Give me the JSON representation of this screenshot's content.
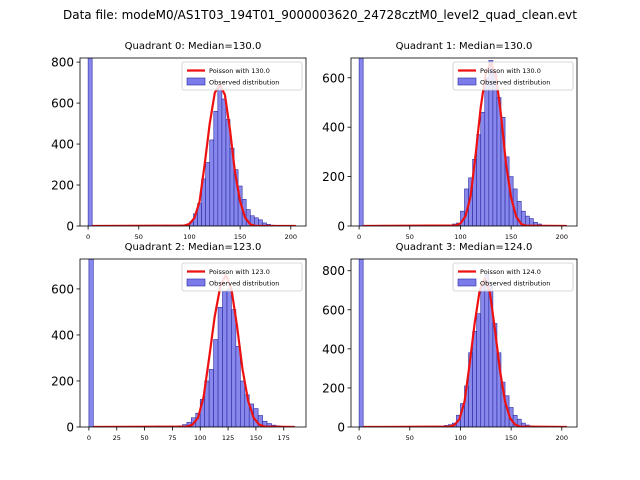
{
  "figure": {
    "suptitle": "Data file: modeM0/AS1T03_194T01_9000003620_24728cztM0_level2_quad_clean.evt"
  },
  "colors": {
    "bar_fill": "#7b7bea",
    "bar_edge": "#2a2aa0",
    "poisson_line": "#ee1111",
    "axis": "#000000",
    "legend_border": "#cccccc"
  },
  "chart_data": [
    {
      "type": "bar",
      "title": "Quadrant 0: Median=130.0",
      "median": 130.0,
      "xlim": [
        -8,
        215
      ],
      "ylim": [
        0,
        820
      ],
      "xticks": [
        0,
        50,
        100,
        150,
        200
      ],
      "yticks": [
        0,
        200,
        400,
        600,
        800
      ],
      "legend": {
        "placement": "top-right",
        "line_label": "Poisson with 130.0",
        "bar_label": "Observed distribution"
      },
      "bins": [
        {
          "x": 0,
          "w": 4,
          "y": 820
        },
        {
          "x": 76,
          "w": 4,
          "y": 4
        },
        {
          "x": 88,
          "w": 4,
          "y": 4
        },
        {
          "x": 92,
          "w": 4,
          "y": 5
        },
        {
          "x": 96,
          "w": 4,
          "y": 8
        },
        {
          "x": 100,
          "w": 4,
          "y": 20
        },
        {
          "x": 104,
          "w": 4,
          "y": 60
        },
        {
          "x": 108,
          "w": 4,
          "y": 110
        },
        {
          "x": 112,
          "w": 4,
          "y": 230
        },
        {
          "x": 116,
          "w": 4,
          "y": 310
        },
        {
          "x": 120,
          "w": 4,
          "y": 420
        },
        {
          "x": 124,
          "w": 4,
          "y": 560
        },
        {
          "x": 128,
          "w": 4,
          "y": 690
        },
        {
          "x": 132,
          "w": 4,
          "y": 620
        },
        {
          "x": 136,
          "w": 4,
          "y": 520
        },
        {
          "x": 140,
          "w": 4,
          "y": 380
        },
        {
          "x": 144,
          "w": 4,
          "y": 275
        },
        {
          "x": 148,
          "w": 4,
          "y": 195
        },
        {
          "x": 152,
          "w": 4,
          "y": 130
        },
        {
          "x": 156,
          "w": 4,
          "y": 80
        },
        {
          "x": 160,
          "w": 4,
          "y": 50
        },
        {
          "x": 164,
          "w": 4,
          "y": 40
        },
        {
          "x": 168,
          "w": 4,
          "y": 30
        },
        {
          "x": 172,
          "w": 4,
          "y": 15
        },
        {
          "x": 176,
          "w": 4,
          "y": 8
        },
        {
          "x": 180,
          "w": 4,
          "y": 4
        }
      ],
      "poisson": [
        [
          4,
          0
        ],
        [
          95,
          2
        ],
        [
          100,
          10
        ],
        [
          105,
          40
        ],
        [
          110,
          120
        ],
        [
          115,
          300
        ],
        [
          120,
          500
        ],
        [
          125,
          650
        ],
        [
          130,
          690
        ],
        [
          135,
          640
        ],
        [
          140,
          470
        ],
        [
          145,
          260
        ],
        [
          150,
          120
        ],
        [
          155,
          40
        ],
        [
          160,
          8
        ],
        [
          165,
          1
        ],
        [
          205,
          0
        ]
      ]
    },
    {
      "type": "bar",
      "title": "Quadrant 1: Median=130.0",
      "median": 130.0,
      "xlim": [
        -8,
        215
      ],
      "ylim": [
        0,
        680
      ],
      "xticks": [
        0,
        50,
        100,
        150,
        200
      ],
      "yticks": [
        0,
        200,
        400,
        600
      ],
      "legend": {
        "placement": "top-right",
        "line_label": "Poisson with 130.0",
        "bar_label": "Observed distribution"
      },
      "bins": [
        {
          "x": 0,
          "w": 4,
          "y": 680
        },
        {
          "x": 80,
          "w": 4,
          "y": 4
        },
        {
          "x": 92,
          "w": 4,
          "y": 8
        },
        {
          "x": 96,
          "w": 4,
          "y": 12
        },
        {
          "x": 100,
          "w": 4,
          "y": 60
        },
        {
          "x": 104,
          "w": 4,
          "y": 150
        },
        {
          "x": 108,
          "w": 4,
          "y": 195
        },
        {
          "x": 112,
          "w": 4,
          "y": 270
        },
        {
          "x": 116,
          "w": 4,
          "y": 370
        },
        {
          "x": 120,
          "w": 4,
          "y": 460
        },
        {
          "x": 124,
          "w": 4,
          "y": 600
        },
        {
          "x": 128,
          "w": 4,
          "y": 670
        },
        {
          "x": 132,
          "w": 4,
          "y": 620
        },
        {
          "x": 136,
          "w": 4,
          "y": 520
        },
        {
          "x": 140,
          "w": 4,
          "y": 440
        },
        {
          "x": 144,
          "w": 4,
          "y": 280
        },
        {
          "x": 148,
          "w": 4,
          "y": 200
        },
        {
          "x": 152,
          "w": 4,
          "y": 150
        },
        {
          "x": 156,
          "w": 4,
          "y": 100
        },
        {
          "x": 160,
          "w": 4,
          "y": 60
        },
        {
          "x": 164,
          "w": 4,
          "y": 40
        },
        {
          "x": 168,
          "w": 4,
          "y": 30
        },
        {
          "x": 172,
          "w": 4,
          "y": 15
        },
        {
          "x": 176,
          "w": 4,
          "y": 8
        }
      ],
      "poisson": [
        [
          4,
          0
        ],
        [
          95,
          2
        ],
        [
          100,
          10
        ],
        [
          105,
          40
        ],
        [
          110,
          120
        ],
        [
          115,
          290
        ],
        [
          120,
          480
        ],
        [
          125,
          620
        ],
        [
          130,
          660
        ],
        [
          135,
          610
        ],
        [
          140,
          450
        ],
        [
          145,
          250
        ],
        [
          150,
          115
        ],
        [
          155,
          38
        ],
        [
          160,
          8
        ],
        [
          165,
          1
        ],
        [
          205,
          0
        ]
      ]
    },
    {
      "type": "bar",
      "title": "Quadrant 2: Median=123.0",
      "median": 123.0,
      "xlim": [
        -8,
        195
      ],
      "ylim": [
        0,
        730
      ],
      "xticks": [
        0,
        25,
        50,
        75,
        100,
        125,
        150,
        175
      ],
      "yticks": [
        0,
        200,
        400,
        600
      ],
      "legend": {
        "placement": "top-right",
        "line_label": "Poisson with 123.0",
        "bar_label": "Observed distribution"
      },
      "bins": [
        {
          "x": 0,
          "w": 4,
          "y": 730
        },
        {
          "x": 60,
          "w": 4,
          "y": 4
        },
        {
          "x": 72,
          "w": 4,
          "y": 4
        },
        {
          "x": 80,
          "w": 4,
          "y": 5
        },
        {
          "x": 84,
          "w": 4,
          "y": 10
        },
        {
          "x": 88,
          "w": 4,
          "y": 20
        },
        {
          "x": 92,
          "w": 4,
          "y": 40
        },
        {
          "x": 96,
          "w": 4,
          "y": 60
        },
        {
          "x": 100,
          "w": 4,
          "y": 120
        },
        {
          "x": 104,
          "w": 4,
          "y": 200
        },
        {
          "x": 108,
          "w": 4,
          "y": 250
        },
        {
          "x": 112,
          "w": 4,
          "y": 380
        },
        {
          "x": 116,
          "w": 4,
          "y": 520
        },
        {
          "x": 120,
          "w": 4,
          "y": 590
        },
        {
          "x": 124,
          "w": 4,
          "y": 600
        },
        {
          "x": 128,
          "w": 4,
          "y": 510
        },
        {
          "x": 132,
          "w": 4,
          "y": 350
        },
        {
          "x": 136,
          "w": 4,
          "y": 200
        },
        {
          "x": 140,
          "w": 4,
          "y": 140
        },
        {
          "x": 144,
          "w": 4,
          "y": 100
        },
        {
          "x": 148,
          "w": 4,
          "y": 80
        },
        {
          "x": 152,
          "w": 4,
          "y": 50
        },
        {
          "x": 156,
          "w": 4,
          "y": 25
        },
        {
          "x": 160,
          "w": 4,
          "y": 15
        },
        {
          "x": 164,
          "w": 4,
          "y": 8
        },
        {
          "x": 168,
          "w": 4,
          "y": 5
        }
      ],
      "poisson": [
        [
          4,
          0
        ],
        [
          88,
          2
        ],
        [
          93,
          10
        ],
        [
          98,
          40
        ],
        [
          103,
          130
        ],
        [
          108,
          300
        ],
        [
          113,
          480
        ],
        [
          118,
          610
        ],
        [
          123,
          660
        ],
        [
          128,
          600
        ],
        [
          133,
          440
        ],
        [
          138,
          250
        ],
        [
          143,
          115
        ],
        [
          148,
          40
        ],
        [
          153,
          10
        ],
        [
          158,
          2
        ],
        [
          185,
          0
        ]
      ]
    },
    {
      "type": "bar",
      "title": "Quadrant 3: Median=124.0",
      "median": 124.0,
      "xlim": [
        -8,
        215
      ],
      "ylim": [
        0,
        860
      ],
      "xticks": [
        0,
        50,
        100,
        150,
        200
      ],
      "yticks": [
        0,
        200,
        400,
        600,
        800
      ],
      "legend": {
        "placement": "top-right",
        "line_label": "Poisson with 124.0",
        "bar_label": "Observed distribution"
      },
      "bins": [
        {
          "x": 0,
          "w": 4,
          "y": 860
        },
        {
          "x": 72,
          "w": 4,
          "y": 4
        },
        {
          "x": 84,
          "w": 4,
          "y": 8
        },
        {
          "x": 88,
          "w": 4,
          "y": 12
        },
        {
          "x": 92,
          "w": 4,
          "y": 20
        },
        {
          "x": 96,
          "w": 4,
          "y": 60
        },
        {
          "x": 100,
          "w": 4,
          "y": 120
        },
        {
          "x": 104,
          "w": 4,
          "y": 210
        },
        {
          "x": 108,
          "w": 4,
          "y": 380
        },
        {
          "x": 112,
          "w": 4,
          "y": 490
        },
        {
          "x": 116,
          "w": 4,
          "y": 580
        },
        {
          "x": 120,
          "w": 4,
          "y": 720
        },
        {
          "x": 124,
          "w": 4,
          "y": 780
        },
        {
          "x": 128,
          "w": 4,
          "y": 720
        },
        {
          "x": 132,
          "w": 4,
          "y": 530
        },
        {
          "x": 136,
          "w": 4,
          "y": 380
        },
        {
          "x": 140,
          "w": 4,
          "y": 230
        },
        {
          "x": 144,
          "w": 4,
          "y": 160
        },
        {
          "x": 148,
          "w": 4,
          "y": 100
        },
        {
          "x": 152,
          "w": 4,
          "y": 60
        },
        {
          "x": 156,
          "w": 4,
          "y": 40
        },
        {
          "x": 160,
          "w": 4,
          "y": 20
        },
        {
          "x": 164,
          "w": 4,
          "y": 10
        },
        {
          "x": 168,
          "w": 4,
          "y": 5
        },
        {
          "x": 172,
          "w": 4,
          "y": 3
        }
      ],
      "poisson": [
        [
          4,
          0
        ],
        [
          89,
          2
        ],
        [
          94,
          10
        ],
        [
          99,
          40
        ],
        [
          104,
          130
        ],
        [
          109,
          320
        ],
        [
          114,
          530
        ],
        [
          119,
          700
        ],
        [
          124,
          760
        ],
        [
          129,
          690
        ],
        [
          134,
          500
        ],
        [
          139,
          290
        ],
        [
          144,
          130
        ],
        [
          149,
          45
        ],
        [
          154,
          12
        ],
        [
          159,
          2
        ],
        [
          205,
          0
        ]
      ]
    }
  ]
}
